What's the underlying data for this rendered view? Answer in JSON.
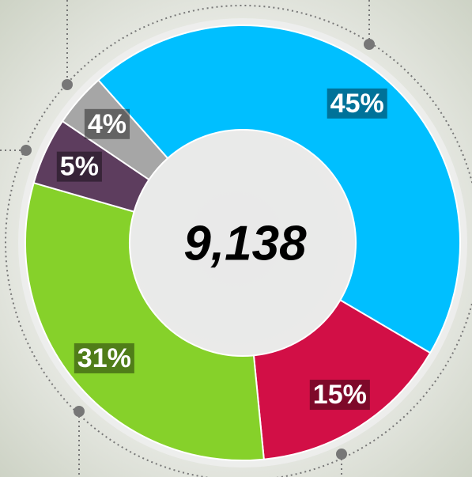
{
  "chart_data": {
    "type": "donut",
    "center_text": "9,138",
    "values": [
      45,
      15,
      31,
      5,
      4
    ],
    "value_labels": [
      "45%",
      "15%",
      "31%",
      "5%",
      "4%"
    ],
    "colors": [
      "#00bfff",
      "#d20f46",
      "#86d12a",
      "#5d3d5e",
      "#a6a6a6"
    ]
  }
}
